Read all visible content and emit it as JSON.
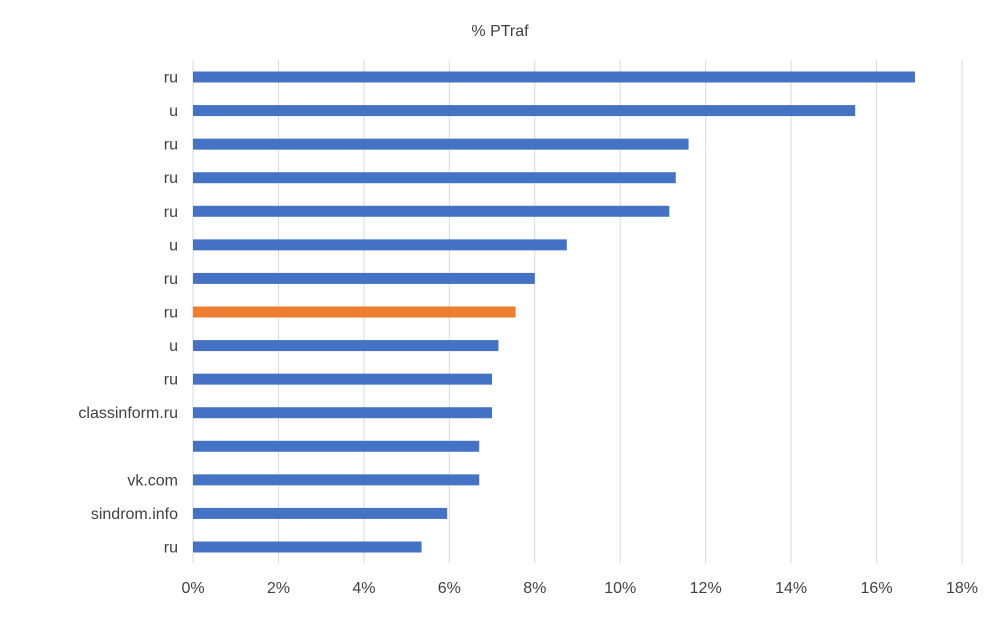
{
  "chart_data": {
    "type": "bar",
    "orientation": "horizontal",
    "title": "% PTraf",
    "xlabel": "",
    "ylabel": "",
    "categories": [
      "ru",
      "u",
      "ru",
      "ru",
      "ru",
      "u",
      "ru",
      "ru",
      "u",
      "ru",
      "classinform.ru",
      "",
      "vk.com",
      "sindrom.info",
      "ru"
    ],
    "values": [
      16.9,
      15.5,
      11.6,
      11.3,
      11.15,
      8.75,
      8.0,
      7.55,
      7.15,
      7.0,
      7.0,
      6.7,
      6.7,
      5.95,
      5.35
    ],
    "highlight_index": 7,
    "x_ticks": [
      "0%",
      "2%",
      "4%",
      "6%",
      "8%",
      "10%",
      "12%",
      "14%",
      "16%",
      "18%"
    ],
    "xlim": [
      0,
      18
    ],
    "grid": "vertical",
    "legend": "none",
    "colors": {
      "bar": "#4472c4",
      "highlight": "#ed7d31"
    }
  }
}
